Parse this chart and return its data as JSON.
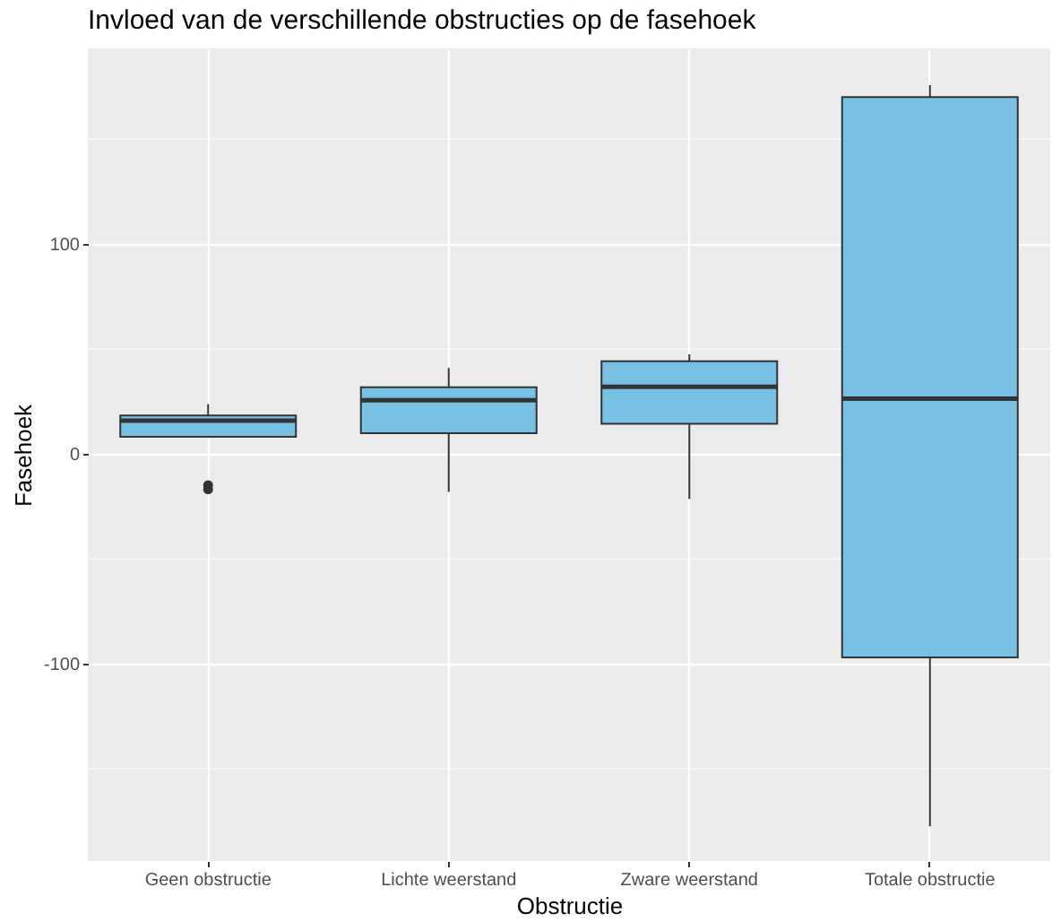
{
  "chart_data": {
    "type": "box",
    "title": "Invloed van de verschillende obstructies op de fasehoek",
    "xlabel": "Obstructie",
    "ylabel": "Fasehoek",
    "categories": [
      "Geen obstructie",
      "Lichte weerstand",
      "Zware weerstand",
      "Totale obstructie"
    ],
    "boxes": [
      {
        "low": 8,
        "q1": 8,
        "median": 15.7,
        "q3": 18.2,
        "high": 23.6,
        "outliers": [
          -15,
          -17
        ]
      },
      {
        "low": -18.2,
        "q1": 9.7,
        "median": 25.4,
        "q3": 31.6,
        "high": 40.8
      },
      {
        "low": -21.6,
        "q1": 14.2,
        "median": 31.9,
        "q3": 44,
        "high": 47.3
      },
      {
        "low": -177.4,
        "q1": -97,
        "median": 26.2,
        "q3": 169.8,
        "high": 175.5
      }
    ],
    "color": "#77c1e5",
    "ylim": [
      -194,
      193
    ],
    "yticks": [
      {
        "value": -150,
        "label": null
      },
      -100,
      {
        "value": -50,
        "label": null
      },
      0,
      {
        "value": 50,
        "label": null
      },
      100,
      {
        "value": 150,
        "label": null
      }
    ],
    "grid": true
  }
}
